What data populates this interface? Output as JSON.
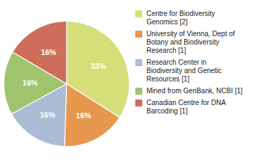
{
  "chart_data": {
    "type": "pie",
    "categories": [
      "Centre for Biodiversity\nGenomics [2]",
      "University of Vienna, Dept of\nBotany and Biodiversity\nResearch [1]",
      "Research Center in\nBiodiversity and Genetic\nResources [1]",
      "Mined from GenBank, NCBI [1]",
      "Canadian Centre for DNA\nBarcoding [1]"
    ],
    "values": [
      33,
      16,
      16,
      16,
      16
    ],
    "value_labels": [
      "33%",
      "16%",
      "16%",
      "16%",
      "16%"
    ],
    "colors": [
      "#d4df7a",
      "#e8974e",
      "#aabdd4",
      "#a0c46e",
      "#cc6e5a"
    ],
    "data_labels": true,
    "legend": "right"
  }
}
